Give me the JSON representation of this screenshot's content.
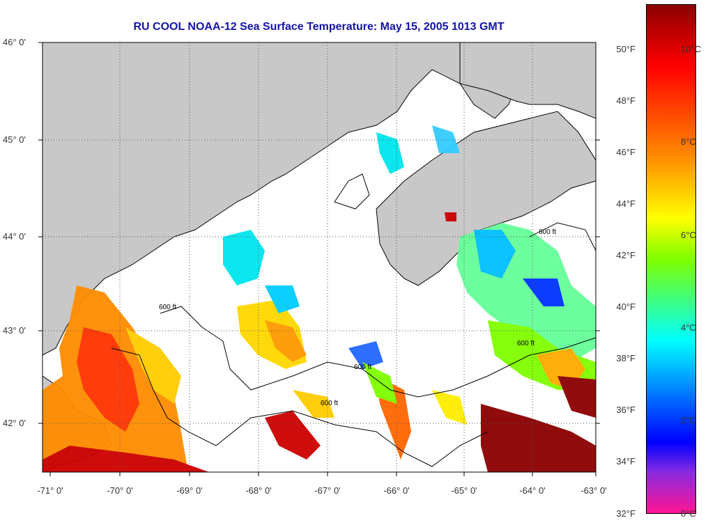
{
  "title": "RU COOL  NOAA-12  Sea Surface Temperature:  May 15, 2005 1013 GMT",
  "lat_labels": [
    "46° 0'",
    "45° 0'",
    "44° 0'",
    "43° 0'",
    "42° 0'"
  ],
  "lon_labels": [
    "-71° 0'",
    "-70° 0'",
    "-69° 0'",
    "-68° 0'",
    "-67° 0'",
    "-66° 0'",
    "-65° 0'",
    "-64° 0'",
    "-63° 0'"
  ],
  "contour_label": "600 ft",
  "colorbar": {
    "fahrenheit": [
      "50°F",
      "48°F",
      "46°F",
      "44°F",
      "42°F",
      "40°F",
      "38°F",
      "36°F",
      "34°F",
      "32°F"
    ],
    "celsius": [
      "10°C",
      "8°C",
      "6°C",
      "4°C",
      "2°C",
      "0°C"
    ],
    "colors": [
      "#8b0000",
      "#ff0000",
      "#ff8c00",
      "#ffff00",
      "#7fff00",
      "#00ffff",
      "#0000ff",
      "#8a2be2",
      "#ff1493"
    ]
  },
  "colors": {
    "land": "#c8c8c8",
    "ocean": "#ffffff",
    "title": "#1414a8"
  }
}
